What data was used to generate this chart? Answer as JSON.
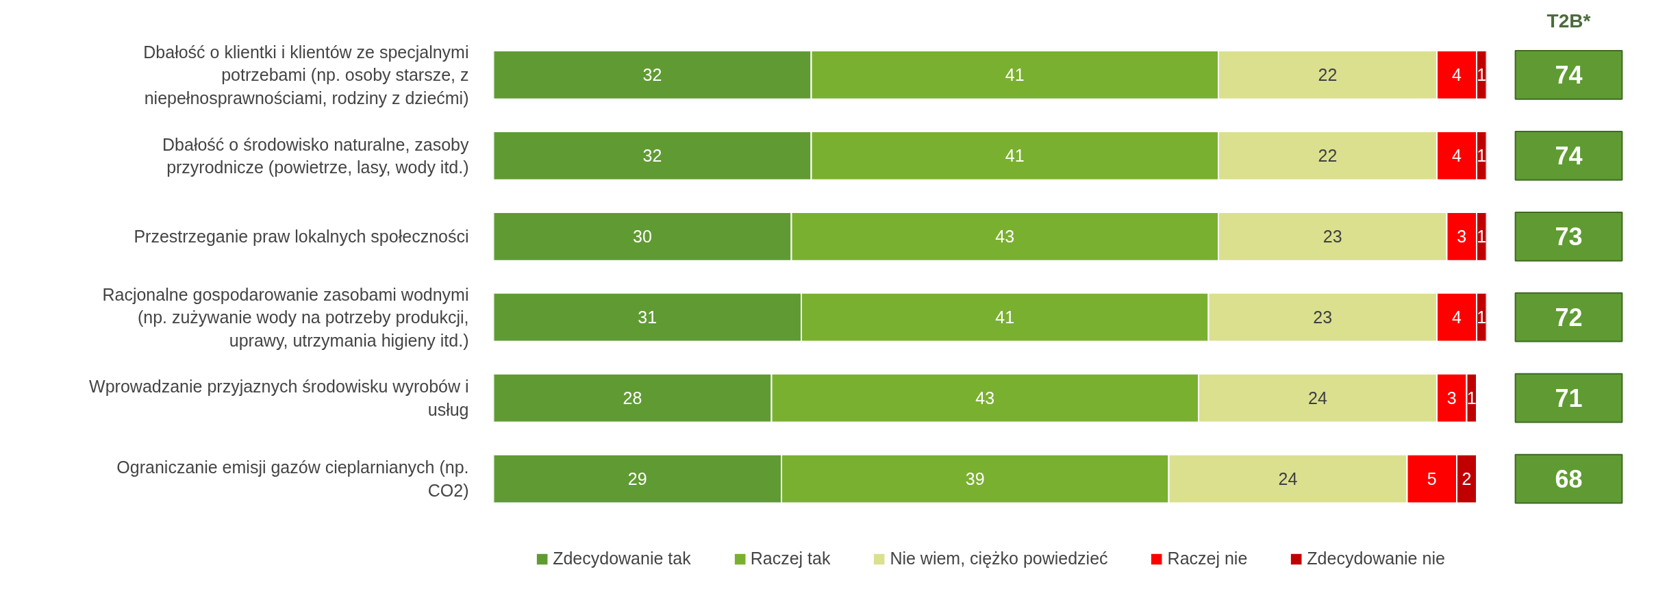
{
  "chart_data": {
    "type": "bar",
    "orientation": "horizontal",
    "stacked": true,
    "categories": [
      "Dbałość o klientki i klientów ze specjalnymi potrzebami (np. osoby starsze, z niepełnosprawnościami, rodziny z dziećmi)",
      "Dbałość o środowisko naturalne, zasoby przyrodnicze (powietrze, lasy, wody itd.)",
      "Przestrzeganie praw lokalnych społeczności",
      "Racjonalne gospodarowanie zasobami wodnymi (np. zużywanie wody na potrzeby produkcji, uprawy, utrzymania higieny itd.)",
      "Wprowadzanie przyjaznych środowisku wyrobów i usług",
      "Ograniczanie emisji gazów cieplarnianych (np. CO2)"
    ],
    "series": [
      {
        "name": "Zdecydowanie tak",
        "color": "#5f9b32",
        "values": [
          32,
          32,
          30,
          31,
          28,
          29
        ]
      },
      {
        "name": "Raczej tak",
        "color": "#7ab030",
        "values": [
          41,
          41,
          43,
          41,
          43,
          39
        ]
      },
      {
        "name": "Nie wiem, ciężko powiedzieć",
        "color": "#dbe08f",
        "values": [
          22,
          22,
          23,
          23,
          24,
          24
        ]
      },
      {
        "name": "Raczej nie",
        "color": "#ff0000",
        "values": [
          4,
          4,
          3,
          4,
          3,
          5
        ]
      },
      {
        "name": "Zdecydowanie nie",
        "color": "#c00000",
        "values": [
          1,
          1,
          1,
          1,
          1,
          2
        ]
      }
    ],
    "xlim": [
      0,
      100
    ],
    "tick_labels": "y",
    "grid": false,
    "data_labels": true,
    "legend": "bottom",
    "annotations": [
      "T2B*",
      "74",
      "74",
      "73",
      "72",
      "71",
      "68"
    ]
  }
}
